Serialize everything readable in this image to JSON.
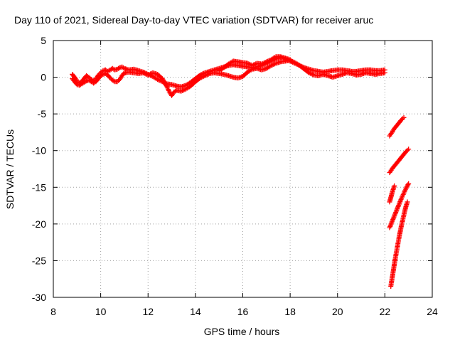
{
  "chart_data": {
    "type": "scatter",
    "title": "Day 110 of 2021, Sidereal Day-to-day VTEC variation (SDTVAR) for receiver aruc",
    "xlabel": "GPS time / hours",
    "ylabel": "SDTVAR / TECUs",
    "xlim": [
      8,
      24
    ],
    "ylim": [
      -30,
      5
    ],
    "xticks": [
      8,
      10,
      12,
      14,
      16,
      18,
      20,
      22,
      24
    ],
    "yticks": [
      5,
      0,
      -5,
      -10,
      -15,
      -20,
      -25,
      -30
    ],
    "xtick_labels": [
      "8",
      "10",
      "12",
      "14",
      "16",
      "18",
      "20",
      "22",
      "24"
    ],
    "ytick_labels": [
      "5",
      "0",
      "-5",
      "-10",
      "-15",
      "-20",
      "-25",
      "-30"
    ],
    "grid": true,
    "marker": "plus",
    "colors": {
      "series": "#ff0000",
      "grid": "#a0a0a0",
      "axes": "#000000"
    },
    "series": [
      {
        "points": [
          [
            8.8,
            0.4
          ],
          [
            8.9,
            0.0
          ],
          [
            9.0,
            -0.5
          ],
          [
            9.1,
            -0.8
          ],
          [
            9.2,
            -0.6
          ],
          [
            9.3,
            -0.2
          ],
          [
            9.4,
            0.2
          ],
          [
            9.5,
            0.0
          ],
          [
            9.6,
            -0.3
          ],
          [
            9.7,
            -0.5
          ],
          [
            9.8,
            -0.2
          ],
          [
            9.9,
            0.3
          ],
          [
            10.0,
            0.6
          ],
          [
            10.1,
            0.9
          ],
          [
            10.2,
            1.0
          ],
          [
            10.3,
            0.8
          ],
          [
            10.4,
            1.0
          ],
          [
            10.5,
            1.2
          ],
          [
            10.6,
            1.0
          ],
          [
            10.7,
            1.1
          ],
          [
            10.8,
            1.3
          ],
          [
            10.9,
            1.4
          ],
          [
            11.0,
            1.2
          ],
          [
            11.2,
            1.0
          ],
          [
            11.4,
            1.1
          ],
          [
            11.6,
            0.9
          ],
          [
            11.8,
            0.7
          ],
          [
            12.0,
            0.4
          ],
          [
            12.2,
            0.1
          ],
          [
            12.4,
            -0.3
          ],
          [
            12.6,
            -0.6
          ],
          [
            12.8,
            -0.9
          ],
          [
            13.0,
            -1.0
          ],
          [
            13.2,
            -1.2
          ],
          [
            13.4,
            -1.3
          ],
          [
            13.6,
            -1.1
          ],
          [
            13.8,
            -0.7
          ],
          [
            14.0,
            -0.2
          ],
          [
            14.2,
            0.3
          ],
          [
            14.4,
            0.6
          ],
          [
            14.6,
            0.8
          ],
          [
            14.8,
            1.0
          ],
          [
            15.0,
            1.2
          ],
          [
            15.2,
            1.4
          ],
          [
            15.4,
            1.6
          ],
          [
            15.6,
            1.7
          ],
          [
            15.8,
            1.6
          ],
          [
            16.0,
            1.5
          ],
          [
            16.2,
            1.4
          ],
          [
            16.4,
            1.3
          ],
          [
            16.6,
            1.4
          ],
          [
            16.8,
            1.6
          ],
          [
            17.0,
            1.9
          ],
          [
            17.2,
            2.2
          ],
          [
            17.4,
            2.5
          ],
          [
            17.6,
            2.7
          ],
          [
            17.8,
            2.5
          ],
          [
            18.0,
            2.2
          ],
          [
            18.2,
            1.9
          ],
          [
            18.4,
            1.6
          ],
          [
            18.6,
            1.3
          ],
          [
            18.8,
            1.1
          ],
          [
            19.0,
            0.9
          ],
          [
            19.2,
            0.8
          ],
          [
            19.4,
            0.7
          ],
          [
            19.6,
            0.8
          ],
          [
            19.8,
            0.9
          ],
          [
            20.0,
            1.0
          ],
          [
            20.2,
            1.0
          ],
          [
            20.4,
            0.9
          ],
          [
            20.6,
            0.8
          ],
          [
            20.8,
            0.8
          ],
          [
            21.0,
            0.9
          ],
          [
            21.2,
            1.0
          ],
          [
            21.4,
            1.0
          ],
          [
            21.6,
            0.9
          ],
          [
            21.8,
            0.9
          ],
          [
            22.0,
            1.0
          ]
        ]
      },
      {
        "points": [
          [
            8.8,
            -0.2
          ],
          [
            8.9,
            -0.6
          ],
          [
            9.0,
            -1.0
          ],
          [
            9.1,
            -1.1
          ],
          [
            9.2,
            -0.9
          ],
          [
            9.3,
            -0.7
          ],
          [
            9.4,
            -0.5
          ],
          [
            9.5,
            -0.4
          ],
          [
            9.6,
            -0.6
          ],
          [
            9.7,
            -0.8
          ],
          [
            9.8,
            -0.6
          ],
          [
            9.9,
            -0.2
          ],
          [
            10.0,
            0.2
          ],
          [
            10.1,
            0.4
          ],
          [
            10.2,
            0.5
          ],
          [
            10.3,
            0.3
          ],
          [
            10.4,
            -0.1
          ],
          [
            10.5,
            -0.4
          ],
          [
            10.6,
            -0.6
          ],
          [
            10.7,
            -0.6
          ],
          [
            10.8,
            -0.3
          ],
          [
            10.9,
            0.2
          ],
          [
            11.0,
            0.6
          ],
          [
            11.2,
            0.7
          ],
          [
            11.4,
            0.6
          ],
          [
            11.6,
            0.5
          ],
          [
            11.8,
            0.6
          ],
          [
            12.0,
            0.3
          ],
          [
            12.2,
            0.6
          ],
          [
            12.4,
            0.4
          ],
          [
            12.6,
            -0.2
          ],
          [
            12.8,
            -1.3
          ],
          [
            12.9,
            -2.0
          ],
          [
            13.0,
            -2.5
          ],
          [
            13.1,
            -2.0
          ],
          [
            13.2,
            -1.8
          ],
          [
            13.4,
            -1.9
          ],
          [
            13.6,
            -1.6
          ],
          [
            13.8,
            -1.2
          ],
          [
            14.0,
            -0.6
          ],
          [
            14.2,
            -0.1
          ],
          [
            14.4,
            0.2
          ],
          [
            14.6,
            0.5
          ],
          [
            14.8,
            0.6
          ],
          [
            15.0,
            0.5
          ],
          [
            15.2,
            0.4
          ],
          [
            15.4,
            0.2
          ],
          [
            15.6,
            0.0
          ],
          [
            15.8,
            -0.1
          ],
          [
            16.0,
            0.1
          ],
          [
            16.2,
            0.7
          ],
          [
            16.4,
            1.1
          ],
          [
            16.6,
            1.2
          ],
          [
            16.8,
            1.0
          ],
          [
            17.0,
            1.2
          ],
          [
            17.2,
            1.6
          ],
          [
            17.4,
            1.9
          ],
          [
            17.6,
            2.1
          ],
          [
            17.8,
            2.2
          ],
          [
            18.0,
            2.3
          ],
          [
            18.2,
            2.0
          ],
          [
            18.4,
            1.6
          ],
          [
            18.6,
            1.1
          ],
          [
            18.8,
            0.6
          ],
          [
            19.0,
            0.3
          ],
          [
            19.2,
            0.2
          ],
          [
            19.4,
            0.4
          ],
          [
            19.6,
            0.2
          ],
          [
            19.8,
            0.0
          ],
          [
            20.0,
            0.2
          ],
          [
            20.2,
            0.4
          ],
          [
            20.4,
            0.6
          ],
          [
            20.6,
            0.5
          ],
          [
            20.8,
            0.3
          ],
          [
            21.0,
            0.4
          ],
          [
            21.2,
            0.6
          ],
          [
            21.4,
            0.5
          ],
          [
            21.6,
            0.4
          ],
          [
            21.8,
            0.5
          ],
          [
            22.0,
            0.6
          ]
        ]
      },
      {
        "points": [
          [
            15.0,
            0.9
          ],
          [
            15.2,
            1.3
          ],
          [
            15.4,
            1.8
          ],
          [
            15.6,
            2.2
          ],
          [
            15.8,
            2.1
          ],
          [
            16.0,
            2.0
          ],
          [
            16.2,
            1.9
          ],
          [
            16.4,
            1.6
          ],
          [
            16.6,
            1.9
          ],
          [
            16.8,
            1.8
          ],
          [
            17.0,
            2.1
          ],
          [
            17.2,
            2.4
          ],
          [
            17.4,
            2.8
          ],
          [
            17.6,
            2.8
          ],
          [
            17.8,
            2.6
          ],
          [
            18.0,
            2.4
          ]
        ]
      },
      {
        "points": [
          [
            22.2,
            -8.0
          ],
          [
            22.3,
            -7.5
          ],
          [
            22.4,
            -7.0
          ],
          [
            22.5,
            -6.6
          ],
          [
            22.6,
            -6.2
          ],
          [
            22.7,
            -5.8
          ],
          [
            22.8,
            -5.5
          ]
        ]
      },
      {
        "points": [
          [
            22.2,
            -13.0
          ],
          [
            22.3,
            -12.5
          ],
          [
            22.4,
            -12.1
          ],
          [
            22.5,
            -11.7
          ],
          [
            22.6,
            -11.3
          ],
          [
            22.7,
            -10.9
          ],
          [
            22.8,
            -10.5
          ],
          [
            22.9,
            -10.1
          ],
          [
            23.0,
            -9.8
          ]
        ]
      },
      {
        "points": [
          [
            22.2,
            -17.0
          ],
          [
            22.25,
            -16.4
          ],
          [
            22.3,
            -15.8
          ],
          [
            22.35,
            -15.3
          ],
          [
            22.4,
            -14.8
          ]
        ]
      },
      {
        "points": [
          [
            22.2,
            -20.5
          ],
          [
            22.3,
            -19.7
          ],
          [
            22.4,
            -18.9
          ],
          [
            22.5,
            -18.1
          ],
          [
            22.6,
            -17.3
          ],
          [
            22.7,
            -16.5
          ],
          [
            22.8,
            -15.8
          ],
          [
            22.9,
            -15.1
          ],
          [
            23.0,
            -14.5
          ]
        ]
      },
      {
        "points": [
          [
            22.25,
            -28.5
          ],
          [
            22.3,
            -27.5
          ],
          [
            22.35,
            -26.5
          ],
          [
            22.4,
            -25.5
          ],
          [
            22.45,
            -24.5
          ],
          [
            22.5,
            -23.6
          ],
          [
            22.55,
            -22.7
          ],
          [
            22.6,
            -21.8
          ],
          [
            22.65,
            -21.0
          ],
          [
            22.7,
            -20.2
          ],
          [
            22.75,
            -19.5
          ],
          [
            22.8,
            -18.8
          ],
          [
            22.85,
            -18.1
          ],
          [
            22.9,
            -17.5
          ],
          [
            22.95,
            -17.0
          ]
        ]
      }
    ]
  }
}
